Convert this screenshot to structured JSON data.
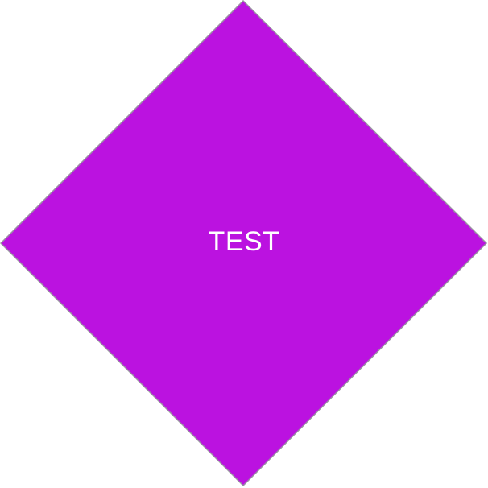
{
  "button": {
    "label": "TEST",
    "fill_color": "#BB12E0",
    "border_color": "#9A8FA3",
    "text_color": "#FFFFFF"
  },
  "page": {
    "background": "#FFFFFF"
  }
}
